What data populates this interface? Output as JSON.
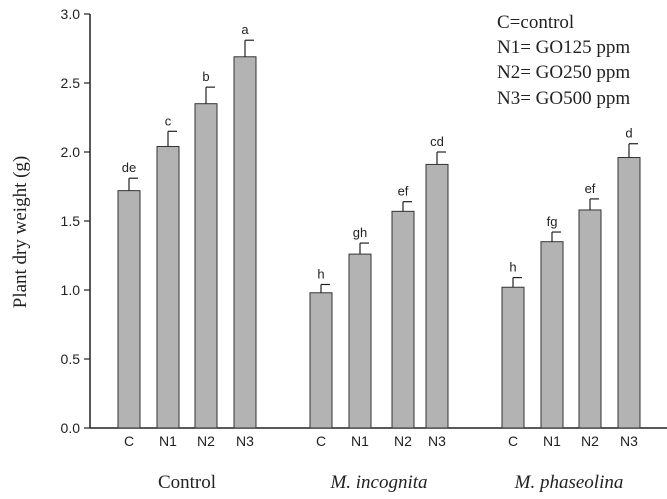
{
  "chart_data": {
    "type": "bar",
    "ylabel": "Plant dry weight (g)",
    "ylim": [
      0,
      3.0
    ],
    "yticks": [
      "0.0",
      "0.5",
      "1.0",
      "1.5",
      "2.0",
      "2.5",
      "3.0"
    ],
    "legend": [
      "C=control",
      "N1= GO125 ppm",
      "N2= GO250 ppm",
      "N3= GO500 ppm"
    ],
    "legend_position": "top-right",
    "bar_color": "#b3b3b3",
    "groups": [
      {
        "name": "Control",
        "italic": false,
        "categories": [
          "C",
          "N1",
          "N2",
          "N3"
        ],
        "values": [
          1.72,
          2.04,
          2.35,
          2.69
        ],
        "errors": [
          0.09,
          0.11,
          0.12,
          0.12
        ],
        "labels": [
          "de",
          "c",
          "b",
          "a"
        ]
      },
      {
        "name": "M. incognita",
        "italic": true,
        "categories": [
          "C",
          "N1",
          "N2",
          "N3"
        ],
        "values": [
          0.98,
          1.26,
          1.57,
          1.91
        ],
        "errors": [
          0.06,
          0.08,
          0.07,
          0.09
        ],
        "labels": [
          "h",
          "gh",
          "ef",
          "cd"
        ]
      },
      {
        "name": "M. phaseolina",
        "italic": true,
        "categories": [
          "C",
          "N1",
          "N2",
          "N3"
        ],
        "values": [
          1.02,
          1.35,
          1.58,
          1.96
        ],
        "errors": [
          0.07,
          0.07,
          0.08,
          0.1
        ],
        "labels": [
          "h",
          "fg",
          "ef",
          "d"
        ]
      }
    ]
  }
}
